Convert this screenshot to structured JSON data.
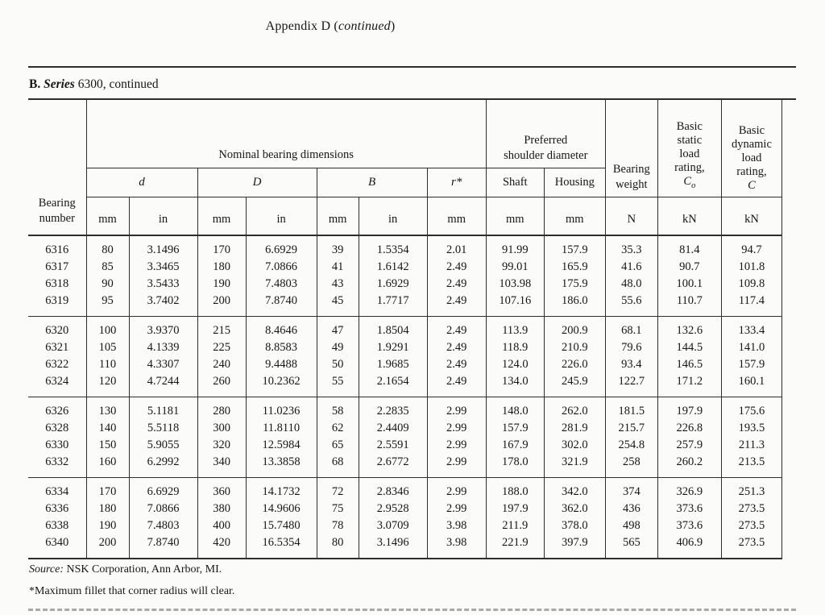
{
  "page_title": {
    "pre": "Appendix D (",
    "italic": "continued",
    "post": ")"
  },
  "section_heading": {
    "b": "B.",
    "i": " Series",
    "rest": " 6300, continued"
  },
  "table": {
    "header": {
      "bearing_number": "Bearing\nnumber",
      "nominal_dims": "Nominal bearing dimensions",
      "preferred_shoulder": "Preferred\nshoulder diameter",
      "bearing_weight": "Bearing\nweight",
      "static_rating": "Basic\nstatic\nload\nrating,",
      "static_symbol": "C",
      "static_subscript": "o",
      "dynamic_rating": "Basic\ndynamic\nload\nrating,",
      "dynamic_symbol": "C",
      "col_d": "d",
      "col_D": "D",
      "col_B": "B",
      "col_r": "r*",
      "col_shaft": "Shaft",
      "col_housing": "Housing",
      "units": [
        "mm",
        "in",
        "mm",
        "in",
        "mm",
        "in",
        "mm",
        "mm",
        "mm",
        "N",
        "kN",
        "kN"
      ]
    },
    "groups": [
      {
        "rows": [
          [
            "6316",
            "80",
            "3.1496",
            "170",
            "6.6929",
            "39",
            "1.5354",
            "2.01",
            "91.99",
            "157.9",
            "35.3",
            "81.4",
            "94.7"
          ],
          [
            "6317",
            "85",
            "3.3465",
            "180",
            "7.0866",
            "41",
            "1.6142",
            "2.49",
            "99.01",
            "165.9",
            "41.6",
            "90.7",
            "101.8"
          ],
          [
            "6318",
            "90",
            "3.5433",
            "190",
            "7.4803",
            "43",
            "1.6929",
            "2.49",
            "103.98",
            "175.9",
            "48.0",
            "100.1",
            "109.8"
          ],
          [
            "6319",
            "95",
            "3.7402",
            "200",
            "7.8740",
            "45",
            "1.7717",
            "2.49",
            "107.16",
            "186.0",
            "55.6",
            "110.7",
            "117.4"
          ]
        ]
      },
      {
        "rows": [
          [
            "6320",
            "100",
            "3.9370",
            "215",
            "8.4646",
            "47",
            "1.8504",
            "2.49",
            "113.9",
            "200.9",
            "68.1",
            "132.6",
            "133.4"
          ],
          [
            "6321",
            "105",
            "4.1339",
            "225",
            "8.8583",
            "49",
            "1.9291",
            "2.49",
            "118.9",
            "210.9",
            "79.6",
            "144.5",
            "141.0"
          ],
          [
            "6322",
            "110",
            "4.3307",
            "240",
            "9.4488",
            "50",
            "1.9685",
            "2.49",
            "124.0",
            "226.0",
            "93.4",
            "146.5",
            "157.9"
          ],
          [
            "6324",
            "120",
            "4.7244",
            "260",
            "10.2362",
            "55",
            "2.1654",
            "2.49",
            "134.0",
            "245.9",
            "122.7",
            "171.2",
            "160.1"
          ]
        ]
      },
      {
        "rows": [
          [
            "6326",
            "130",
            "5.1181",
            "280",
            "11.0236",
            "58",
            "2.2835",
            "2.99",
            "148.0",
            "262.0",
            "181.5",
            "197.9",
            "175.6"
          ],
          [
            "6328",
            "140",
            "5.5118",
            "300",
            "11.8110",
            "62",
            "2.4409",
            "2.99",
            "157.9",
            "281.9",
            "215.7",
            "226.8",
            "193.5"
          ],
          [
            "6330",
            "150",
            "5.9055",
            "320",
            "12.5984",
            "65",
            "2.5591",
            "2.99",
            "167.9",
            "302.0",
            "254.8",
            "257.9",
            "211.3"
          ],
          [
            "6332",
            "160",
            "6.2992",
            "340",
            "13.3858",
            "68",
            "2.6772",
            "2.99",
            "178.0",
            "321.9",
            "258",
            "260.2",
            "213.5"
          ]
        ]
      },
      {
        "rows": [
          [
            "6334",
            "170",
            "6.6929",
            "360",
            "14.1732",
            "72",
            "2.8346",
            "2.99",
            "188.0",
            "342.0",
            "374",
            "326.9",
            "251.3"
          ],
          [
            "6336",
            "180",
            "7.0866",
            "380",
            "14.9606",
            "75",
            "2.9528",
            "2.99",
            "197.9",
            "362.0",
            "436",
            "373.6",
            "273.5"
          ],
          [
            "6338",
            "190",
            "7.4803",
            "400",
            "15.7480",
            "78",
            "3.0709",
            "3.98",
            "211.9",
            "378.0",
            "498",
            "373.6",
            "273.5"
          ],
          [
            "6340",
            "200",
            "7.8740",
            "420",
            "16.5354",
            "80",
            "3.1496",
            "3.98",
            "221.9",
            "397.9",
            "565",
            "406.9",
            "273.5"
          ]
        ]
      }
    ]
  },
  "footer": {
    "source_label": "Source:",
    "source_text": " NSK Corporation, Ann Arbor, MI.",
    "footnote": "*Maximum fillet that corner radius will clear."
  }
}
